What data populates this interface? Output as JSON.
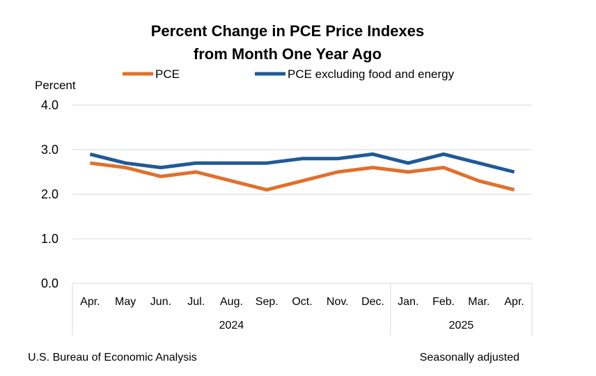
{
  "chart_data": {
    "type": "line",
    "title": "Percent Change in PCE Price Indexes",
    "subtitle": "from Month One Year Ago",
    "ylabel": "Percent",
    "ylim": [
      0,
      4
    ],
    "yticks": [
      "0.0",
      "1.0",
      "2.0",
      "3.0",
      "4.0"
    ],
    "categories": [
      "Apr.",
      "May",
      "Jun.",
      "Jul.",
      "Aug.",
      "Sep.",
      "Oct.",
      "Nov.",
      "Dec.",
      "Jan.",
      "Feb.",
      "Mar.",
      "Apr."
    ],
    "year_groups": [
      {
        "label": "2024",
        "count": 9
      },
      {
        "label": "2025",
        "count": 4
      }
    ],
    "grid": true,
    "legend_position": "top",
    "series": [
      {
        "name": "PCE",
        "color": "#E0702A",
        "values": [
          2.7,
          2.6,
          2.4,
          2.5,
          2.3,
          2.1,
          2.3,
          2.5,
          2.6,
          2.5,
          2.6,
          2.3,
          2.1
        ]
      },
      {
        "name": "PCE excluding food and energy",
        "color": "#1F5A96",
        "values": [
          2.9,
          2.7,
          2.6,
          2.7,
          2.7,
          2.7,
          2.8,
          2.8,
          2.9,
          2.7,
          2.9,
          2.7,
          2.5
        ]
      }
    ]
  },
  "footer": {
    "source": "U.S. Bureau of Economic Analysis",
    "note": "Seasonally adjusted"
  }
}
